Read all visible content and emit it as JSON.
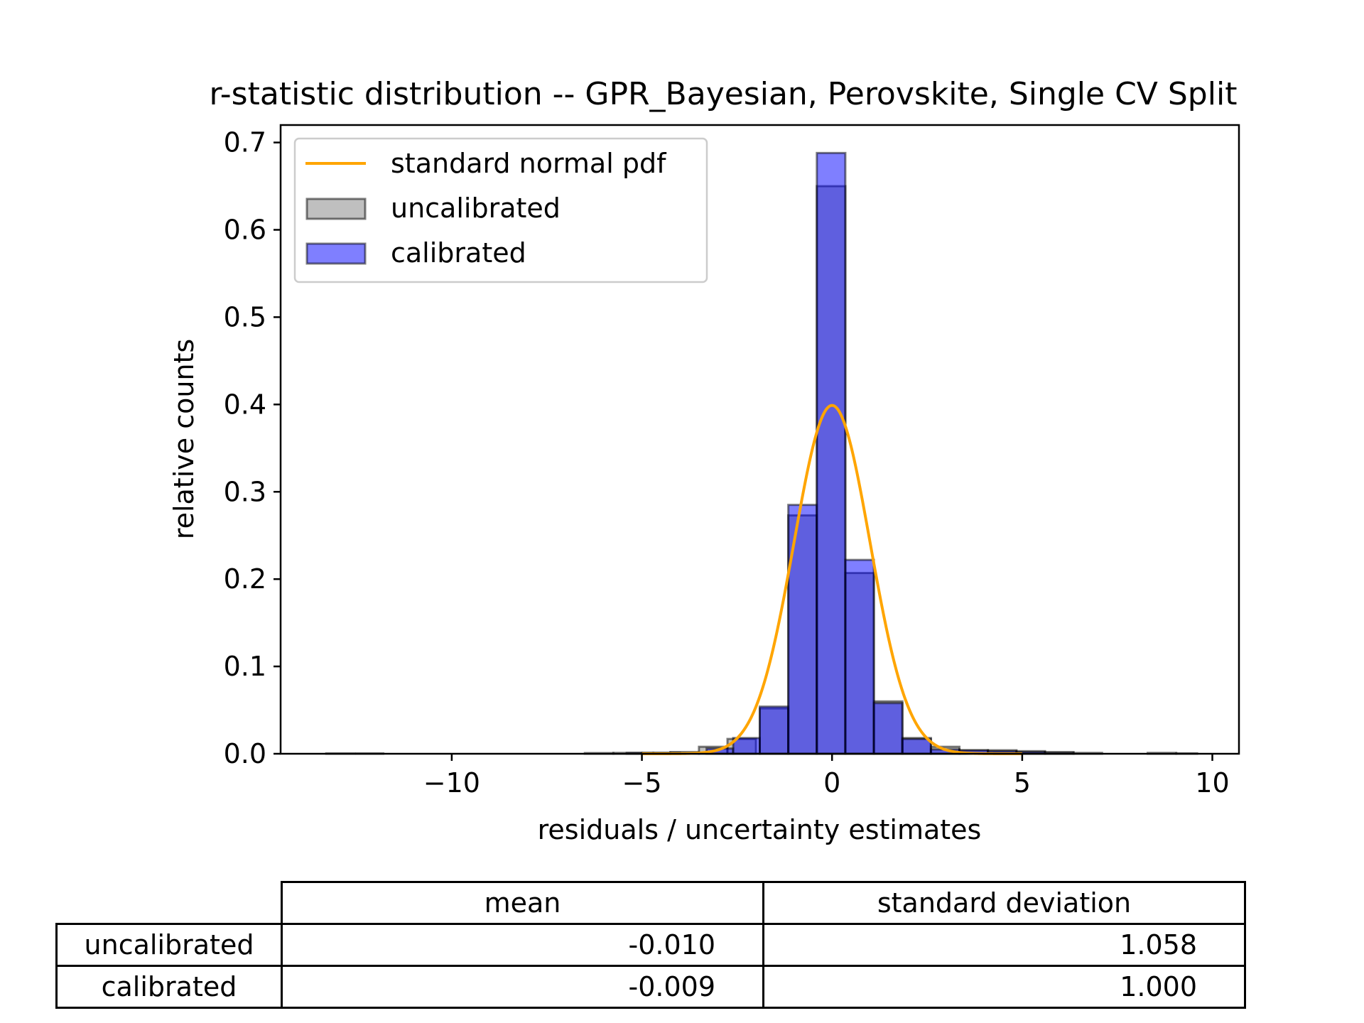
{
  "chart_data": {
    "type": "bar",
    "title": "r-statistic distribution -- GPR_Bayesian, Perovskite, Single CV Split",
    "xlabel": "residuals / uncertainty estimates",
    "ylabel": "relative counts",
    "xlim": [
      -14.5,
      10.7
    ],
    "ylim": [
      0,
      0.72
    ],
    "xticks": [
      -10,
      -5,
      0,
      5,
      10
    ],
    "xtick_labels": [
      "−10",
      "−5",
      "0",
      "5",
      "10"
    ],
    "yticks": [
      0.0,
      0.1,
      0.2,
      0.3,
      0.4,
      0.5,
      0.6,
      0.7
    ],
    "ytick_labels": [
      "0.0",
      "0.1",
      "0.2",
      "0.3",
      "0.4",
      "0.5",
      "0.6",
      "0.7"
    ],
    "legend_position": "top-left",
    "series": [
      {
        "name": "uncalibrated",
        "kind": "histogram",
        "color": "#808080",
        "bins": [
          {
            "x0": -13.3,
            "x1": -12.55,
            "y": 0.0004
          },
          {
            "x0": -6.5,
            "x1": -5.75,
            "y": 0.0008
          },
          {
            "x0": -5.75,
            "x1": -5.0,
            "y": 0.001
          },
          {
            "x0": -5.0,
            "x1": -4.25,
            "y": 0.001
          },
          {
            "x0": -4.25,
            "x1": -3.5,
            "y": 0.002
          },
          {
            "x0": -3.5,
            "x1": -2.75,
            "y": 0.008
          },
          {
            "x0": -2.75,
            "x1": -2.0,
            "y": 0.017
          },
          {
            "x0": -1.9,
            "x1": -1.15,
            "y": 0.052
          },
          {
            "x0": -1.15,
            "x1": -0.4,
            "y": 0.273
          },
          {
            "x0": -0.4,
            "x1": 0.35,
            "y": 0.65
          },
          {
            "x0": 0.35,
            "x1": 1.1,
            "y": 0.207
          },
          {
            "x0": 1.1,
            "x1": 1.85,
            "y": 0.06
          },
          {
            "x0": 1.85,
            "x1": 2.6,
            "y": 0.018
          },
          {
            "x0": 2.6,
            "x1": 3.35,
            "y": 0.008
          },
          {
            "x0": 3.35,
            "x1": 4.1,
            "y": 0.004
          },
          {
            "x0": 4.1,
            "x1": 4.85,
            "y": 0.004
          },
          {
            "x0": 4.85,
            "x1": 5.6,
            "y": 0.003
          },
          {
            "x0": 5.6,
            "x1": 6.35,
            "y": 0.002
          },
          {
            "x0": 6.35,
            "x1": 7.1,
            "y": 0.001
          },
          {
            "x0": 8.3,
            "x1": 9.05,
            "y": 0.001
          },
          {
            "x0": 9.05,
            "x1": 9.6,
            "y": 0.0005
          }
        ]
      },
      {
        "name": "calibrated",
        "kind": "histogram",
        "color": "#0000ff",
        "bins": [
          {
            "x0": -12.5,
            "x1": -11.8,
            "y": 0.0004
          },
          {
            "x0": -5.4,
            "x1": -4.7,
            "y": 0.001
          },
          {
            "x0": -4.7,
            "x1": -4.0,
            "y": 0.001
          },
          {
            "x0": -3.3,
            "x1": -2.6,
            "y": 0.006
          },
          {
            "x0": -2.6,
            "x1": -1.9,
            "y": 0.018
          },
          {
            "x0": -1.9,
            "x1": -1.15,
            "y": 0.054
          },
          {
            "x0": -1.15,
            "x1": -0.4,
            "y": 0.285
          },
          {
            "x0": -0.4,
            "x1": 0.35,
            "y": 0.688
          },
          {
            "x0": 0.35,
            "x1": 1.1,
            "y": 0.222
          },
          {
            "x0": 1.1,
            "x1": 1.85,
            "y": 0.058
          },
          {
            "x0": 1.85,
            "x1": 2.6,
            "y": 0.017
          },
          {
            "x0": 2.6,
            "x1": 3.35,
            "y": 0.005
          },
          {
            "x0": 3.35,
            "x1": 4.1,
            "y": 0.004
          },
          {
            "x0": 4.1,
            "x1": 4.85,
            "y": 0.003
          },
          {
            "x0": 4.85,
            "x1": 5.6,
            "y": 0.002
          },
          {
            "x0": 5.6,
            "x1": 6.35,
            "y": 0.001
          }
        ]
      },
      {
        "name": "standard normal pdf",
        "kind": "line",
        "color": "#ffa500",
        "function": "standard normal pdf",
        "x_range": [
          -5,
          5
        ]
      }
    ]
  },
  "stats_table": {
    "columns": [
      "mean",
      "standard deviation"
    ],
    "rows": [
      {
        "label": "uncalibrated",
        "mean": "-0.010",
        "std": "1.058"
      },
      {
        "label": "calibrated",
        "mean": "-0.009",
        "std": "1.000"
      }
    ]
  }
}
